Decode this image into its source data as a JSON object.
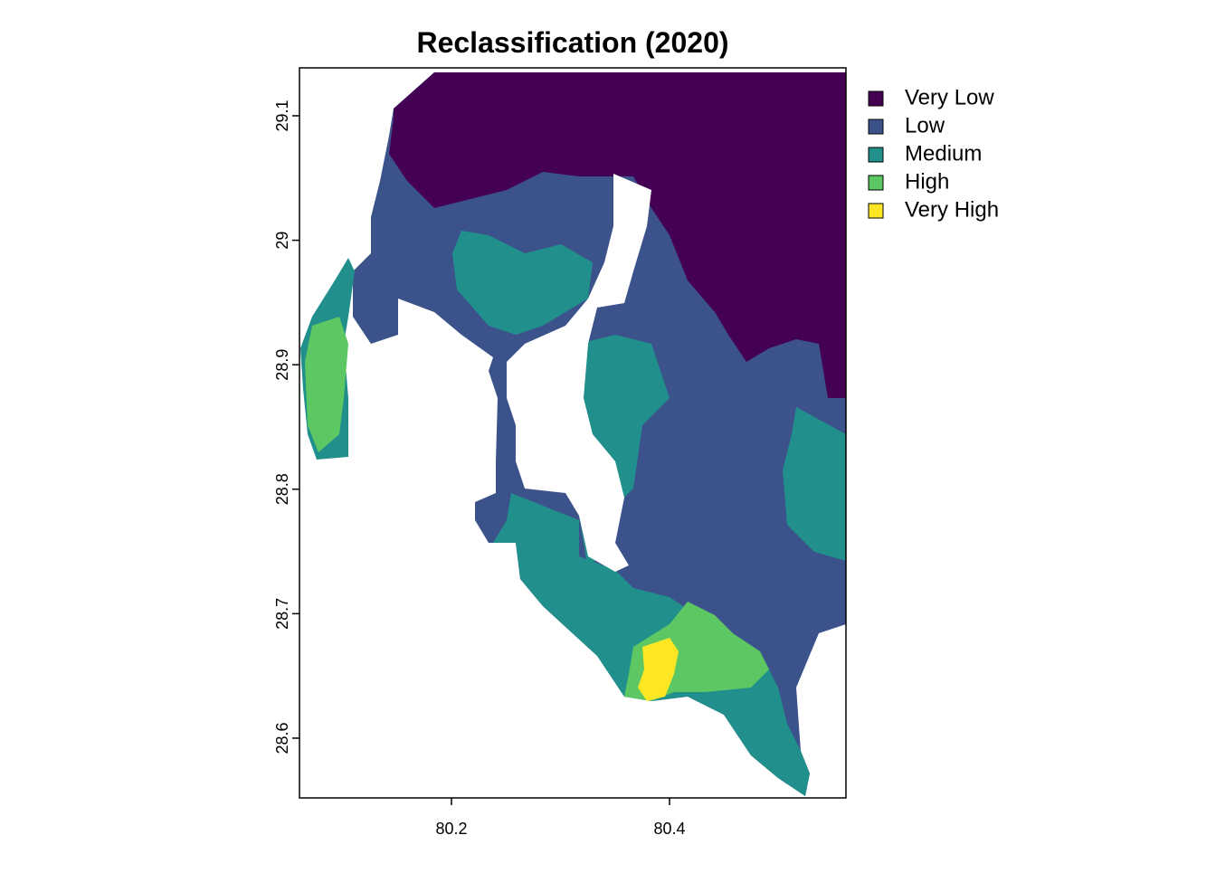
{
  "chart_data": {
    "type": "raster",
    "title": "Reclassification (2020)",
    "xlim": [
      80.0606,
      80.5618
    ],
    "ylim": [
      28.552,
      29.1385
    ],
    "xticks": [
      80.2,
      80.4
    ],
    "yticks": [
      28.6,
      28.7,
      28.8,
      28.9,
      29,
      29.1
    ],
    "legend_position": "right",
    "legend": [
      {
        "name": "Very Low",
        "color": "#440154"
      },
      {
        "name": "Low",
        "color": "#3B528B"
      },
      {
        "name": "Medium",
        "color": "#21908C"
      },
      {
        "name": "High",
        "color": "#5DC863"
      },
      {
        "name": "Very High",
        "color": "#FDE725"
      }
    ]
  }
}
